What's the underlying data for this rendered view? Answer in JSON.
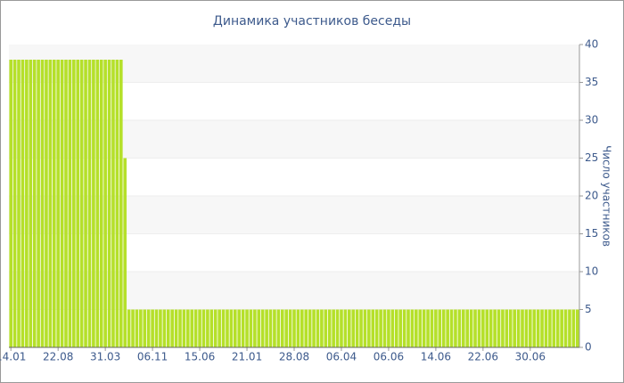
{
  "chart_data": {
    "type": "bar",
    "title": "Динамика участников беседы",
    "y_axis_label": "Число участников",
    "categories": [
      "14.01",
      null,
      null,
      null,
      null,
      null,
      null,
      null,
      null,
      null,
      null,
      null,
      "22.08",
      null,
      null,
      null,
      null,
      null,
      null,
      null,
      null,
      null,
      null,
      null,
      "31.03",
      null,
      null,
      null,
      null,
      null,
      null,
      null,
      null,
      null,
      null,
      null,
      "06.11",
      null,
      null,
      null,
      null,
      null,
      null,
      null,
      null,
      null,
      null,
      null,
      "15.06",
      null,
      null,
      null,
      null,
      null,
      null,
      null,
      null,
      null,
      null,
      null,
      "21.01",
      null,
      null,
      null,
      null,
      null,
      null,
      null,
      null,
      null,
      null,
      null,
      "28.08",
      null,
      null,
      null,
      null,
      null,
      null,
      null,
      null,
      null,
      null,
      null,
      "06.04",
      null,
      null,
      null,
      null,
      null,
      null,
      null,
      null,
      null,
      null,
      null,
      "06.06",
      null,
      null,
      null,
      null,
      null,
      null,
      null,
      null,
      null,
      null,
      null,
      "14.06",
      null,
      null,
      null,
      null,
      null,
      null,
      null,
      null,
      null,
      null,
      null,
      "22.06",
      null,
      null,
      null,
      null,
      null,
      null,
      null,
      null,
      null,
      null,
      null,
      "30.06",
      null,
      null,
      null,
      null,
      null,
      null,
      null,
      null,
      null,
      null,
      null,
      null
    ],
    "values": [
      38,
      38,
      38,
      38,
      38,
      38,
      38,
      38,
      38,
      38,
      38,
      38,
      38,
      38,
      38,
      38,
      38,
      38,
      38,
      38,
      38,
      38,
      38,
      38,
      38,
      38,
      38,
      38,
      38,
      25,
      5,
      5,
      5,
      5,
      5,
      5,
      5,
      5,
      5,
      5,
      5,
      5,
      5,
      5,
      5,
      5,
      5,
      5,
      5,
      5,
      5,
      5,
      5,
      5,
      5,
      5,
      5,
      5,
      5,
      5,
      5,
      5,
      5,
      5,
      5,
      5,
      5,
      5,
      5,
      5,
      5,
      5,
      5,
      5,
      5,
      5,
      5,
      5,
      5,
      5,
      5,
      5,
      5,
      5,
      5,
      5,
      5,
      5,
      5,
      5,
      5,
      5,
      5,
      5,
      5,
      5,
      5,
      5,
      5,
      5,
      5,
      5,
      5,
      5,
      5,
      5,
      5,
      5,
      5,
      5,
      5,
      5,
      5,
      5,
      5,
      5,
      5,
      5,
      5,
      5,
      5,
      5,
      5,
      5,
      5,
      5,
      5,
      5,
      5,
      5,
      5,
      5,
      5,
      5,
      5,
      5,
      5,
      5,
      5,
      5,
      5,
      5,
      5,
      5,
      5
    ],
    "color": "#b5e02a",
    "ylim": [
      0,
      40
    ],
    "yticks": [
      0,
      5,
      10,
      15,
      20,
      25,
      30,
      35,
      40
    ],
    "y_axis_side": "right",
    "grid": true
  }
}
